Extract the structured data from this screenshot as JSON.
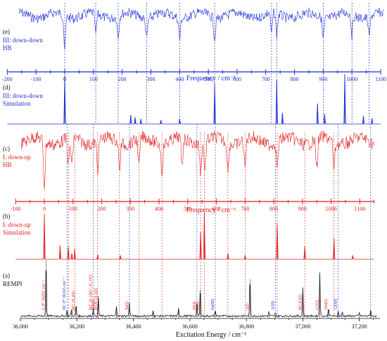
{
  "chart_data": [
    {
      "type": "line",
      "panel": "(e)",
      "labels": [
        "III: down-down",
        "HB"
      ],
      "color": "#1f2fd8",
      "description": "hole-burning spectrum (inverted dips)",
      "dips_cm1": [
        0,
        108,
        186,
        285,
        400,
        522,
        720,
        738,
        900,
        1000,
        1060
      ]
    },
    {
      "type": "line",
      "panel": "axis-III",
      "xlabel": "Frequency / cm⁻¹",
      "xlim": [
        -200,
        1100
      ],
      "ticks": [
        "-200",
        "-100",
        "0",
        "100",
        "200",
        "300",
        "400",
        "500",
        "600",
        "700",
        "800",
        "900",
        "1000",
        "1100"
      ],
      "color": "#1f2fd8"
    },
    {
      "type": "line",
      "panel": "(d)",
      "labels": [
        "III: down-down",
        "Simulation"
      ],
      "color": "#1f2fd8",
      "peaks": [
        {
          "x": 0,
          "y": 0.86
        },
        {
          "x": 230,
          "y": 0.16
        },
        {
          "x": 245,
          "y": 0.12
        },
        {
          "x": 265,
          "y": 0.09
        },
        {
          "x": 335,
          "y": 0.07
        },
        {
          "x": 400,
          "y": 0.09
        },
        {
          "x": 522,
          "y": 0.72
        },
        {
          "x": 738,
          "y": 0.78
        },
        {
          "x": 758,
          "y": 0.2
        },
        {
          "x": 880,
          "y": 0.36
        },
        {
          "x": 905,
          "y": 0.18
        },
        {
          "x": 975,
          "y": 0.88
        },
        {
          "x": 1040,
          "y": 0.14
        },
        {
          "x": 1070,
          "y": 0.1
        }
      ]
    },
    {
      "type": "line",
      "panel": "(c)",
      "labels": [
        "I: down-up",
        "HB"
      ],
      "color": "#e02020",
      "description": "hole-burning spectrum (inverted dips)",
      "dips_cm1": [
        0,
        84,
        96,
        186,
        262,
        330,
        410,
        480,
        545,
        560,
        640,
        700,
        812,
        950,
        1010
      ]
    },
    {
      "type": "line",
      "panel": "axis-I",
      "xlabel": "Frequency / cm⁻¹",
      "xlim": [
        -100,
        1150
      ],
      "ticks": [
        "-100",
        "0",
        "100",
        "200",
        "300",
        "400",
        "500",
        "600",
        "700",
        "800",
        "900",
        "1000",
        "1100"
      ],
      "color": "#e02020"
    },
    {
      "type": "line",
      "panel": "(b)",
      "labels": [
        "I: down-up",
        "Simulation"
      ],
      "color": "#e02020",
      "peaks": [
        {
          "x": 0,
          "y": 0.92
        },
        {
          "x": 55,
          "y": 0.28
        },
        {
          "x": 84,
          "y": 0.25
        },
        {
          "x": 96,
          "y": 0.12
        },
        {
          "x": 106,
          "y": 0.2
        },
        {
          "x": 186,
          "y": 0.09
        },
        {
          "x": 265,
          "y": 0.08
        },
        {
          "x": 545,
          "y": 0.55
        },
        {
          "x": 558,
          "y": 0.95
        },
        {
          "x": 640,
          "y": 0.12
        },
        {
          "x": 700,
          "y": 0.08
        },
        {
          "x": 812,
          "y": 0.74
        },
        {
          "x": 908,
          "y": 0.26
        },
        {
          "x": 1010,
          "y": 0.42
        },
        {
          "x": 1075,
          "y": 0.08
        }
      ]
    },
    {
      "type": "line",
      "panel": "(a)",
      "label": "REMPI",
      "color": "#111111",
      "xlabel": "Excitation Energy / cm⁻¹",
      "xlim": [
        36000,
        37260
      ],
      "ticks": [
        "36,000",
        "36,200",
        "36,400",
        "36,600",
        "36,800",
        "37,000",
        "37,200"
      ],
      "peaks": [
        {
          "x": 36091,
          "y": 0.92
        },
        {
          "x": 36165,
          "y": 0.1
        },
        {
          "x": 36181,
          "y": 0.12
        },
        {
          "x": 36197,
          "y": 0.18
        },
        {
          "x": 36258,
          "y": 0.14
        },
        {
          "x": 36276,
          "y": 0.3
        },
        {
          "x": 36340,
          "y": 0.16
        },
        {
          "x": 36386,
          "y": 0.22
        },
        {
          "x": 36470,
          "y": 0.1
        },
        {
          "x": 36560,
          "y": 0.12
        },
        {
          "x": 36625,
          "y": 0.22
        },
        {
          "x": 36637,
          "y": 0.45
        },
        {
          "x": 36690,
          "y": 0.1
        },
        {
          "x": 36813,
          "y": 0.62
        },
        {
          "x": 36880,
          "y": 0.06
        },
        {
          "x": 36903,
          "y": 0.05
        },
        {
          "x": 37000,
          "y": 0.46
        },
        {
          "x": 37060,
          "y": 0.7
        },
        {
          "x": 37091,
          "y": 0.14
        },
        {
          "x": 37125,
          "y": 0.08
        },
        {
          "x": 37140,
          "y": 0.06
        },
        {
          "x": 37200,
          "y": 0.06
        },
        {
          "x": 37240,
          "y": 0.1
        }
      ],
      "annotations": [
        {
          "text": "I: 0⁰ 36091 cm⁻¹",
          "x": 36091,
          "color": "#e02020"
        },
        {
          "text": "III: 0⁰ 36165 cm⁻¹",
          "x": 36165,
          "color": "#1f2fd8"
        },
        {
          "text": "β(C₁H₁)(I)",
          "x": 36197,
          "color": "#e02020"
        },
        {
          "text": "β(C₁H₁)/β(C₁H₁)¹(I)",
          "x": 36258,
          "color": "#e02020"
        },
        {
          "text": "10b(I)",
          "x": 36268,
          "color": "#e02020"
        },
        {
          "text": "β(OC₁H₁)(I)",
          "x": 36276,
          "color": "#e02020"
        },
        {
          "text": "9a(I)",
          "x": 36386,
          "color": "#e02020"
        },
        {
          "text": "6b(I)",
          "x": 36625,
          "color": "#e02020"
        },
        {
          "text": "6a(I)",
          "x": 36637,
          "color": "#e02020"
        },
        {
          "text": "6a(III)",
          "x": 36690,
          "color": "#1f2fd8"
        },
        {
          "text": "1(I)",
          "x": 36813,
          "color": "#e02020"
        },
        {
          "text": "1(III)",
          "x": 36903,
          "color": "#1f2fd8"
        },
        {
          "text": "β(CH)(I)",
          "x": 37000,
          "color": "#e02020"
        },
        {
          "text": "12¹(I)",
          "x": 37060,
          "color": "#e02020"
        },
        {
          "text": "18a(I)",
          "x": 37091,
          "color": "#e02020"
        },
        {
          "text": "12(III)",
          "x": 37125,
          "color": "#1f2fd8"
        }
      ]
    }
  ],
  "panel_labels": {
    "e": "(e)",
    "e_l1": "III: down-down",
    "e_l2": "HB",
    "d": "(d)",
    "d_l1": "III: down-down",
    "d_l2": "Simulation",
    "c": "(c)",
    "c_l1": "I: down-up",
    "c_l2": "HB",
    "b": "(b)",
    "b_l1": "I: down-up",
    "b_l2": "Simulation",
    "a": "(a)",
    "a_l1": "REMPI",
    "axis_iii_title": "Frequency / cm⁻¹",
    "axis_i_title": "Frequency / cm⁻¹",
    "bottom_title": "Excitation Energy / cm⁻¹"
  },
  "colors": {
    "blue": "#1f2fd8",
    "red": "#e02020",
    "black": "#111111"
  }
}
